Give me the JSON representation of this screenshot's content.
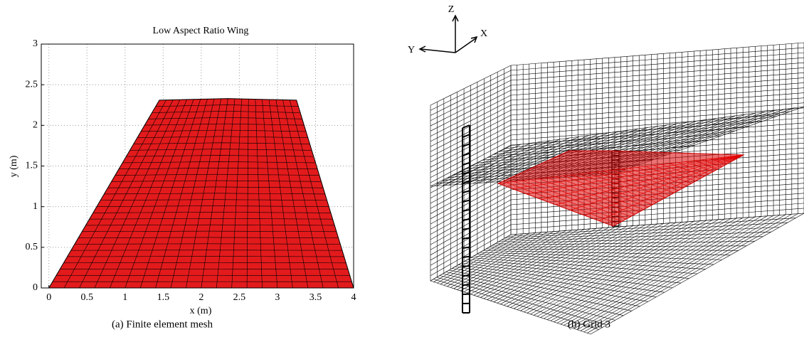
{
  "chart_data": {
    "type": "mesh",
    "title": "Low Aspect Ratio Wing",
    "x_label": "x (m)",
    "y_label": "y (m)",
    "outline_x": [
      0,
      4,
      3.25,
      2.35,
      1.45
    ],
    "outline_y": [
      0,
      0,
      2.31,
      2.33,
      2.31
    ],
    "color": "#e31a1c",
    "xlim": [
      -0.1,
      4
    ],
    "ylim": [
      0,
      3
    ],
    "xticks": [
      0,
      0.5,
      1,
      1.5,
      2,
      2.5,
      3,
      3.5,
      4
    ],
    "yticks": [
      0,
      0.5,
      1,
      1.5,
      2,
      2.5,
      3
    ],
    "grid": true
  },
  "captions": [
    "(a) Finite element mesh",
    "(b) Grid 3"
  ],
  "grid_figure": {
    "axis_labels": [
      "Z",
      "Y",
      "X"
    ]
  }
}
